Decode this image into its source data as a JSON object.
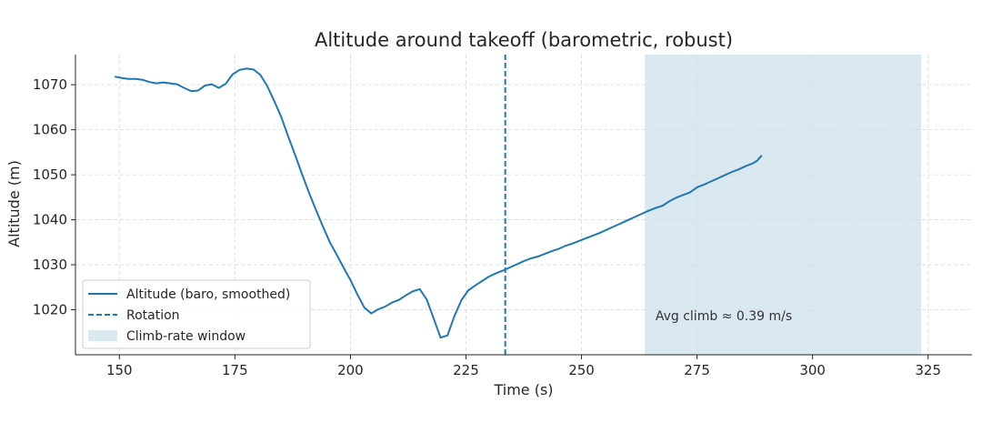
{
  "chart_data": {
    "type": "line",
    "title": "Altitude around takeoff (barometric, robust)",
    "xlabel": "Time (s)",
    "ylabel": "Altitude (m)",
    "xlim": [
      140.5,
      334.5
    ],
    "ylim": [
      1010,
      1076.7
    ],
    "xticks": [
      150,
      175,
      200,
      225,
      250,
      275,
      300,
      325
    ],
    "yticks": [
      1020,
      1030,
      1040,
      1050,
      1060,
      1070
    ],
    "grid": true,
    "legend_position": "lower-left",
    "colors": {
      "line": "#1f77b4",
      "window": "#dae8f2",
      "grid": "#d9d9d9"
    },
    "series": [
      {
        "name": "Altitude (baro, smoothed)",
        "x": [
          149.0,
          150.5,
          152.0,
          153.5,
          155.0,
          156.5,
          158.0,
          159.5,
          161.0,
          162.5,
          164.0,
          165.5,
          167.0,
          168.5,
          170.0,
          171.5,
          173.0,
          174.5,
          176.0,
          177.5,
          179.0,
          180.5,
          182.0,
          183.5,
          185.0,
          186.5,
          188.0,
          189.5,
          191.0,
          192.5,
          194.0,
          195.5,
          197.0,
          198.5,
          200.0,
          201.5,
          203.0,
          204.5,
          206.0,
          207.5,
          209.0,
          210.5,
          212.0,
          213.5,
          215.0,
          216.5,
          218.0,
          219.5,
          221.0,
          222.5,
          224.0,
          225.5,
          227.0,
          228.5,
          230.0,
          231.5,
          233.0,
          234.5,
          236.0,
          237.5,
          239.0,
          240.5,
          242.0,
          243.5,
          245.0,
          246.5,
          248.0,
          249.5,
          251.0,
          252.5,
          254.0,
          255.5,
          257.0,
          258.5,
          260.0,
          261.5,
          263.0,
          264.5,
          266.0,
          267.5,
          269.0,
          270.5,
          272.0,
          273.5,
          275.0,
          276.5,
          278.0,
          279.5,
          281.0,
          282.5,
          284.0,
          285.5,
          287.0,
          288.0,
          289.0
        ],
        "values": [
          1071.8,
          1071.5,
          1071.3,
          1071.3,
          1071.1,
          1070.6,
          1070.3,
          1070.5,
          1070.3,
          1070.1,
          1069.3,
          1068.6,
          1068.7,
          1069.8,
          1070.1,
          1069.3,
          1070.2,
          1072.3,
          1073.3,
          1073.6,
          1073.4,
          1072.2,
          1069.7,
          1066.4,
          1062.9,
          1058.6,
          1054.5,
          1050.2,
          1046.1,
          1042.3,
          1038.6,
          1035.1,
          1032.3,
          1029.4,
          1026.6,
          1023.4,
          1020.5,
          1019.2,
          1020.1,
          1020.7,
          1021.6,
          1022.2,
          1023.2,
          1024.1,
          1024.6,
          1022.3,
          1018.1,
          1013.8,
          1014.3,
          1018.6,
          1022.1,
          1024.3,
          1025.4,
          1026.4,
          1027.4,
          1028.1,
          1028.7,
          1029.4,
          1030.1,
          1030.8,
          1031.4,
          1031.8,
          1032.4,
          1033.0,
          1033.5,
          1034.2,
          1034.7,
          1035.3,
          1035.9,
          1036.5,
          1037.1,
          1037.8,
          1038.5,
          1039.2,
          1039.9,
          1040.6,
          1041.3,
          1042.0,
          1042.6,
          1043.1,
          1044.1,
          1044.9,
          1045.5,
          1046.1,
          1047.2,
          1047.8,
          1048.5,
          1049.2,
          1049.9,
          1050.6,
          1051.2,
          1051.9,
          1052.5,
          1053.1,
          1054.3
        ]
      }
    ],
    "rotation_x": 233.5,
    "window": [
      263.7,
      323.5
    ],
    "annotation": {
      "text": "Avg climb ≈ 0.39 m/s",
      "x": 266,
      "y": 1018.7
    },
    "legend": [
      {
        "label": "Altitude (baro, smoothed)",
        "kind": "line"
      },
      {
        "label": "Rotation",
        "kind": "dashed"
      },
      {
        "label": "Climb-rate window",
        "kind": "patch"
      }
    ]
  }
}
